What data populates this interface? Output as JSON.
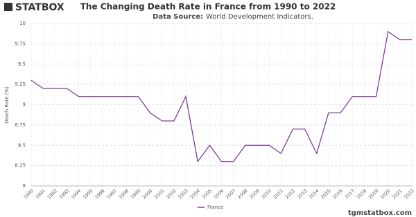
{
  "brand": {
    "logo": "STATBOX",
    "footer": "tgmstatbox.com"
  },
  "chart_data": {
    "type": "line",
    "title": "The Changing Death Rate in France from 1990 to 2022",
    "subtitle_label": "Data Source:",
    "subtitle": "World Development Indicators.",
    "y_label": "Death Rate (%)",
    "categories": [
      "1990",
      "1991",
      "1992",
      "1993",
      "1994",
      "1995",
      "1996",
      "1997",
      "1998",
      "1999",
      "2000",
      "2001",
      "2002",
      "2003",
      "2004",
      "2005",
      "2006",
      "2007",
      "2008",
      "2009",
      "2010",
      "2011",
      "2012",
      "2013",
      "2014",
      "2015",
      "2016",
      "2017",
      "2018",
      "2019",
      "2020",
      "2021",
      "2022"
    ],
    "series": [
      {
        "name": "France",
        "color": "#7d3c98",
        "values": [
          9.3,
          9.2,
          9.2,
          9.2,
          9.1,
          9.1,
          9.1,
          9.1,
          9.1,
          9.1,
          8.9,
          8.8,
          8.8,
          9.1,
          8.3,
          8.5,
          8.3,
          8.3,
          8.5,
          8.5,
          8.5,
          8.4,
          8.7,
          8.7,
          8.4,
          8.9,
          8.9,
          9.1,
          9.1,
          9.1,
          9.9,
          9.8,
          9.8
        ]
      }
    ],
    "ylim": [
      8,
      10
    ],
    "yticks": [
      8,
      8.25,
      8.5,
      8.75,
      9,
      9.25,
      9.5,
      9.75,
      10
    ],
    "grid": true,
    "legend": "bottom"
  }
}
